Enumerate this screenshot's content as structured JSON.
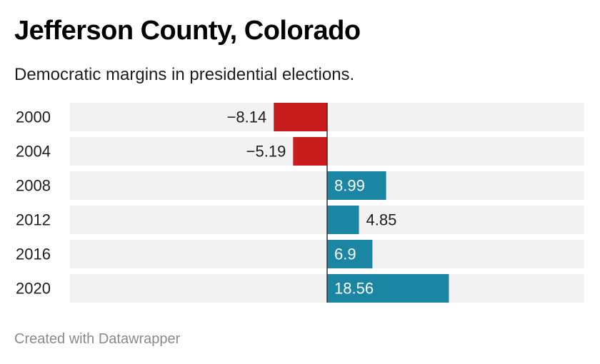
{
  "header": {
    "title": "Jefferson County, Colorado",
    "subtitle": "Democratic margins in presidential elections."
  },
  "footer": {
    "credit": "Created with Datawrapper"
  },
  "colors": {
    "positive": "#1b86a3",
    "negative": "#c91c1c",
    "track": "#f2f2f2",
    "axis": "#333333",
    "label_dark": "#1d1d1d",
    "label_light": "#ffffff"
  },
  "chart_data": {
    "type": "bar",
    "orientation": "horizontal",
    "title": "Jefferson County, Colorado",
    "subtitle": "Democratic margins in presidential elections.",
    "categories": [
      "2000",
      "2004",
      "2008",
      "2012",
      "2016",
      "2020"
    ],
    "values": [
      -8.14,
      -5.19,
      8.99,
      4.85,
      6.9,
      18.56
    ],
    "value_labels": [
      "−8.14",
      "−5.19",
      "8.99",
      "4.85",
      "6.9",
      "18.56"
    ],
    "xlim": [
      -39.2,
      39.2
    ],
    "grid": false,
    "legend": "none"
  }
}
